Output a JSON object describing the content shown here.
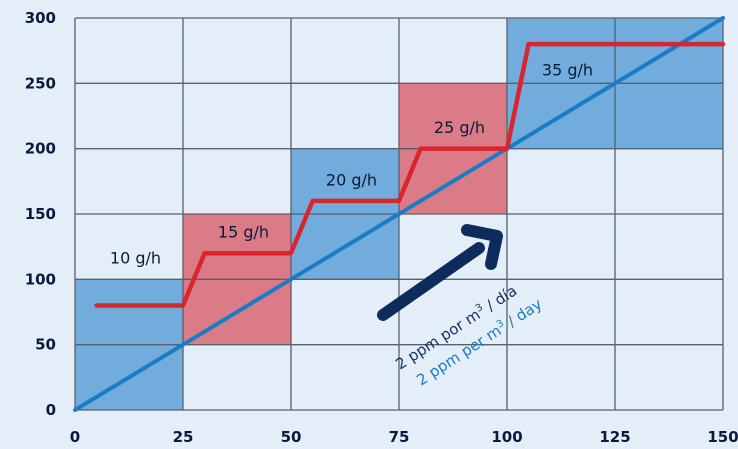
{
  "chart_data": {
    "type": "line",
    "xlim": [
      0,
      150
    ],
    "ylim": [
      0,
      300
    ],
    "x_ticks": [
      0,
      25,
      50,
      75,
      100,
      125,
      150
    ],
    "y_ticks": [
      0,
      50,
      100,
      150,
      200,
      250,
      300
    ],
    "x_tick_labels": [
      "0",
      "25",
      "50",
      "75",
      "100",
      "125",
      "150"
    ],
    "y_tick_labels": [
      "0",
      "50",
      "100",
      "150",
      "200",
      "250",
      "300"
    ],
    "grid": true,
    "series": [
      {
        "values_x": [
          5,
          25,
          30,
          50,
          55,
          75,
          80,
          100,
          105,
          150
        ],
        "values_y": [
          80,
          80,
          120,
          120,
          160,
          160,
          200,
          200,
          280,
          280
        ],
        "color": "#d7262d"
      },
      {
        "values_x": [
          0,
          150
        ],
        "values_y": [
          0,
          300
        ],
        "color": "#1a7cc4"
      }
    ],
    "bands": [
      {
        "x0": 0,
        "x1": 25,
        "y0": 0,
        "y1": 100,
        "color": "#72acdc",
        "label": "10 g/h",
        "label_x": 14,
        "label_y": 112
      },
      {
        "x0": 25,
        "x1": 50,
        "y0": 50,
        "y1": 150,
        "color": "#dc7b88",
        "label": "15 g/h",
        "label_x": 39,
        "label_y": 132
      },
      {
        "x0": 50,
        "x1": 75,
        "y0": 100,
        "y1": 200,
        "color": "#72acdc",
        "label": "20 g/h",
        "label_x": 64,
        "label_y": 172
      },
      {
        "x0": 75,
        "x1": 100,
        "y0": 150,
        "y1": 250,
        "color": "#dc7b88",
        "label": "25 g/h",
        "label_x": 89,
        "label_y": 212
      },
      {
        "x0": 100,
        "x1": 150,
        "y0": 200,
        "y1": 300,
        "color": "#72acdc",
        "label": "35 g/h",
        "label_x": 114,
        "label_y": 256
      }
    ],
    "annotations": [
      {
        "text": "2 ppm por m3 / día",
        "color": "#13305e"
      },
      {
        "text": "2 ppm per m3 / day",
        "color": "#1a7cc4"
      }
    ],
    "arrow_color": "#0f2b5b",
    "grid_color": "#5a5f6a"
  }
}
